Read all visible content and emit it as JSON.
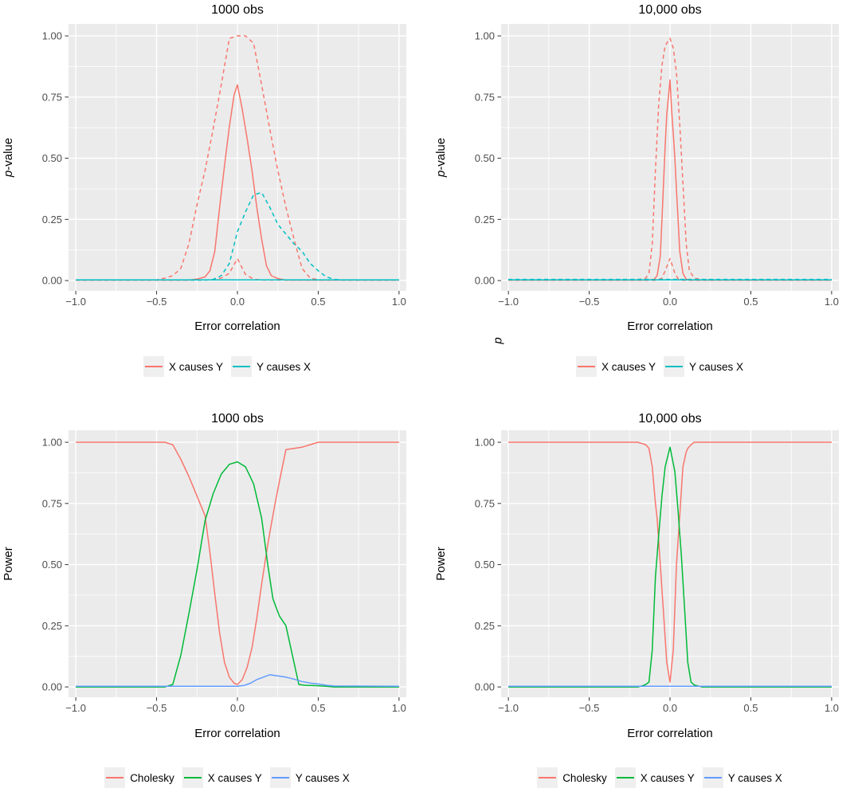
{
  "theme": {
    "panel_bg": "#EBEBEB",
    "grid_color": "#FFFFFF",
    "tick_color": "#333333",
    "tick_label_color": "#4D4D4D",
    "text_color": "#000000",
    "legend_key_bg": "#EFEFEF",
    "palette": {
      "red": "#F8766D",
      "teal": "#00BFC4",
      "green": "#00BA38",
      "blue": "#619CFF"
    }
  },
  "chart_data": [
    {
      "type": "line",
      "title": "1000 obs",
      "xlabel": "Error correlation",
      "ylabel_italic": "p",
      "ylabel_rest": "-value",
      "xlim": [
        -1.045,
        1.045
      ],
      "ylim": [
        -0.042,
        1.049
      ],
      "x_ticks": [
        -1.0,
        -0.5,
        0.0,
        0.5,
        1.0
      ],
      "x_tick_labels": [
        "−1.0",
        "−0.5",
        "0.0",
        "0.5",
        "1.0"
      ],
      "x_minor": [
        -0.75,
        -0.25,
        0.25,
        0.75
      ],
      "y_ticks": [
        0,
        0.25,
        0.5,
        0.75,
        1
      ],
      "y_tick_labels": [
        "0.00",
        "0.25",
        "0.50",
        "0.75",
        "1.00"
      ],
      "y_minor": [
        0.125,
        0.375,
        0.625,
        0.875
      ],
      "legend": [
        {
          "label": "X causes Y",
          "color": "#F8766D"
        },
        {
          "label": "Y causes X",
          "color": "#00BFC4"
        }
      ],
      "series": [
        {
          "name": "x-causes-y-upper-band",
          "color": "#F8766D",
          "dash": true,
          "x": [
            -1,
            -0.5,
            -0.45,
            -0.4,
            -0.35,
            -0.3,
            -0.25,
            -0.2,
            -0.15,
            -0.1,
            -0.05,
            0,
            0.05,
            0.1,
            0.15,
            0.2,
            0.25,
            0.3,
            0.35,
            0.4,
            0.45,
            0.5,
            1
          ],
          "y": [
            0.003,
            0.003,
            0.01,
            0.02,
            0.05,
            0.15,
            0.31,
            0.45,
            0.62,
            0.8,
            0.99,
            1,
            1,
            0.97,
            0.8,
            0.62,
            0.45,
            0.3,
            0.17,
            0.05,
            0.01,
            0.003,
            0.003
          ]
        },
        {
          "name": "x-causes-y-lower-band",
          "color": "#F8766D",
          "dash": true,
          "x": [
            -1,
            -0.2,
            -0.15,
            -0.1,
            -0.05,
            0,
            0.05,
            0.1,
            0.15,
            1
          ],
          "y": [
            0.002,
            0.002,
            0.004,
            0.01,
            0.03,
            0.09,
            0.025,
            0.006,
            0.002,
            0.002
          ]
        },
        {
          "name": "y-causes-x-upper-band",
          "color": "#00BFC4",
          "dash": true,
          "x": [
            -1,
            -0.2,
            -0.15,
            -0.1,
            -0.05,
            0,
            0.05,
            0.1,
            0.15,
            0.2,
            0.25,
            0.3,
            0.35,
            0.4,
            0.45,
            0.5,
            0.55,
            0.6,
            0.65,
            1
          ],
          "y": [
            0.002,
            0.002,
            0.005,
            0.02,
            0.07,
            0.2,
            0.28,
            0.35,
            0.36,
            0.3,
            0.23,
            0.19,
            0.15,
            0.12,
            0.07,
            0.04,
            0.015,
            0.005,
            0.002,
            0.002
          ]
        },
        {
          "name": "x-causes-y-mean",
          "color": "#F8766D",
          "dash": false,
          "x": [
            -1,
            -0.3,
            -0.25,
            -0.2,
            -0.17,
            -0.14,
            -0.11,
            -0.08,
            -0.05,
            -0.02,
            0,
            0.03,
            0.06,
            0.09,
            0.12,
            0.15,
            0.18,
            0.21,
            0.25,
            0.3,
            1
          ],
          "y": [
            0.002,
            0.002,
            0.006,
            0.015,
            0.04,
            0.12,
            0.3,
            0.47,
            0.63,
            0.76,
            0.8,
            0.7,
            0.58,
            0.45,
            0.3,
            0.17,
            0.06,
            0.02,
            0.008,
            0.002,
            0.002
          ]
        },
        {
          "name": "y-causes-x-mean",
          "color": "#00BFC4",
          "dash": false,
          "x": [
            -1,
            1
          ],
          "y": [
            0.003,
            0.003
          ]
        }
      ]
    },
    {
      "type": "line",
      "title": "10,000 obs",
      "xlabel": "Error correlation",
      "ylabel_italic": "p",
      "ylabel_rest": "-value",
      "stray_label": "p",
      "xlim": [
        -1.045,
        1.045
      ],
      "ylim": [
        -0.042,
        1.049
      ],
      "x_ticks": [
        -1.0,
        -0.5,
        0.0,
        0.5,
        1.0
      ],
      "x_tick_labels": [
        "−1.0",
        "−0.5",
        "0.0",
        "0.5",
        "1.0"
      ],
      "x_minor": [
        -0.75,
        -0.25,
        0.25,
        0.75
      ],
      "y_ticks": [
        0,
        0.25,
        0.5,
        0.75,
        1
      ],
      "y_tick_labels": [
        "0.00",
        "0.25",
        "0.50",
        "0.75",
        "1.00"
      ],
      "y_minor": [
        0.125,
        0.375,
        0.625,
        0.875
      ],
      "legend": [
        {
          "label": "X causes Y",
          "color": "#F8766D"
        },
        {
          "label": "Y causes X",
          "color": "#00BFC4"
        }
      ],
      "series": [
        {
          "name": "x-causes-y-upper-band",
          "color": "#F8766D",
          "dash": true,
          "x": [
            -1,
            -0.25,
            -0.2,
            -0.15,
            -0.13,
            -0.11,
            -0.09,
            -0.07,
            -0.05,
            -0.03,
            0,
            0.02,
            0.04,
            0.06,
            0.08,
            0.1,
            0.12,
            0.15,
            0.2,
            0.25,
            1
          ],
          "y": [
            0.002,
            0.002,
            0.004,
            0.01,
            0.03,
            0.15,
            0.45,
            0.72,
            0.88,
            0.96,
            0.99,
            0.95,
            0.85,
            0.64,
            0.4,
            0.15,
            0.04,
            0.01,
            0.003,
            0.002,
            0.002
          ]
        },
        {
          "name": "x-causes-y-lower-band",
          "color": "#F8766D",
          "dash": true,
          "x": [
            -1,
            -0.08,
            -0.05,
            -0.03,
            0,
            0.03,
            0.05,
            0.08,
            1
          ],
          "y": [
            0.001,
            0.001,
            0.01,
            0.04,
            0.09,
            0.03,
            0.008,
            0.001,
            0.001
          ]
        },
        {
          "name": "y-causes-x-upper-band",
          "color": "#00BFC4",
          "dash": true,
          "x": [
            -1,
            1
          ],
          "y": [
            0.005,
            0.005
          ]
        },
        {
          "name": "x-causes-y-mean",
          "color": "#F8766D",
          "dash": false,
          "x": [
            -1,
            -0.15,
            -0.1,
            -0.08,
            -0.06,
            -0.05,
            -0.04,
            -0.03,
            -0.02,
            -0.01,
            0,
            0.01,
            0.02,
            0.03,
            0.04,
            0.05,
            0.06,
            0.08,
            0.1,
            0.15,
            1
          ],
          "y": [
            0.002,
            0.002,
            0.004,
            0.02,
            0.1,
            0.25,
            0.4,
            0.55,
            0.68,
            0.75,
            0.82,
            0.7,
            0.6,
            0.5,
            0.37,
            0.25,
            0.12,
            0.03,
            0.005,
            0.002,
            0.002
          ]
        },
        {
          "name": "y-causes-x-mean",
          "color": "#00BFC4",
          "dash": false,
          "x": [
            -1,
            1
          ],
          "y": [
            0.003,
            0.003
          ]
        }
      ]
    },
    {
      "type": "line",
      "title": "1000 obs",
      "xlabel": "Error correlation",
      "ylabel_italic": "",
      "ylabel_rest": "Power",
      "xlim": [
        -1.045,
        1.045
      ],
      "ylim": [
        -0.042,
        1.049
      ],
      "x_ticks": [
        -1.0,
        -0.5,
        0.0,
        0.5,
        1.0
      ],
      "x_tick_labels": [
        "−1.0",
        "−0.5",
        "0.0",
        "0.5",
        "1.0"
      ],
      "x_minor": [
        -0.75,
        -0.25,
        0.25,
        0.75
      ],
      "y_ticks": [
        0,
        0.25,
        0.5,
        0.75,
        1
      ],
      "y_tick_labels": [
        "0.00",
        "0.25",
        "0.50",
        "0.75",
        "1.00"
      ],
      "y_minor": [
        0.125,
        0.375,
        0.625,
        0.875
      ],
      "legend": [
        {
          "label": "Cholesky",
          "color": "#F8766D"
        },
        {
          "label": "X causes Y",
          "color": "#00BA38"
        },
        {
          "label": "Y causes X",
          "color": "#619CFF"
        }
      ],
      "series": [
        {
          "name": "cholesky-power",
          "color": "#F8766D",
          "dash": false,
          "x": [
            -1,
            -0.5,
            -0.45,
            -0.4,
            -0.35,
            -0.3,
            -0.25,
            -0.2,
            -0.17,
            -0.14,
            -0.11,
            -0.08,
            -0.05,
            -0.02,
            0,
            0.03,
            0.06,
            0.09,
            0.12,
            0.15,
            0.18,
            0.2,
            0.23,
            0.26,
            0.3,
            0.35,
            0.4,
            0.45,
            0.5,
            0.6,
            1
          ],
          "y": [
            1,
            1,
            1,
            0.99,
            0.93,
            0.86,
            0.78,
            0.7,
            0.55,
            0.38,
            0.22,
            0.1,
            0.04,
            0.015,
            0.01,
            0.03,
            0.08,
            0.16,
            0.28,
            0.42,
            0.55,
            0.63,
            0.74,
            0.84,
            0.97,
            0.975,
            0.98,
            0.99,
            1,
            1,
            1
          ]
        },
        {
          "name": "x-causes-y-power",
          "color": "#00BA38",
          "dash": false,
          "x": [
            -1,
            -0.45,
            -0.4,
            -0.35,
            -0.3,
            -0.25,
            -0.2,
            -0.15,
            -0.1,
            -0.05,
            0,
            0.05,
            0.1,
            0.15,
            0.19,
            0.22,
            0.26,
            0.3,
            0.35,
            0.38,
            0.42,
            0.5,
            0.55,
            0.6,
            1
          ],
          "y": [
            0,
            0,
            0.01,
            0.13,
            0.3,
            0.48,
            0.68,
            0.79,
            0.87,
            0.91,
            0.92,
            0.9,
            0.83,
            0.69,
            0.49,
            0.36,
            0.29,
            0.25,
            0.1,
            0.01,
            0.007,
            0.005,
            0.003,
            0,
            0
          ]
        },
        {
          "name": "y-causes-x-power",
          "color": "#619CFF",
          "dash": false,
          "x": [
            -1,
            0,
            0.04,
            0.08,
            0.12,
            0.16,
            0.2,
            0.25,
            0.3,
            0.35,
            0.4,
            0.45,
            0.5,
            0.55,
            0.6,
            1
          ],
          "y": [
            0.003,
            0.003,
            0.006,
            0.015,
            0.03,
            0.04,
            0.05,
            0.045,
            0.04,
            0.032,
            0.022,
            0.016,
            0.012,
            0.007,
            0.004,
            0.003
          ]
        }
      ]
    },
    {
      "type": "line",
      "title": "10,000 obs",
      "xlabel": "Error correlation",
      "ylabel_italic": "",
      "ylabel_rest": "Power",
      "xlim": [
        -1.045,
        1.045
      ],
      "ylim": [
        -0.042,
        1.049
      ],
      "x_ticks": [
        -1.0,
        -0.5,
        0.0,
        0.5,
        1.0
      ],
      "x_tick_labels": [
        "−1.0",
        "−0.5",
        "0.0",
        "0.5",
        "1.0"
      ],
      "x_minor": [
        -0.75,
        -0.25,
        0.25,
        0.75
      ],
      "y_ticks": [
        0,
        0.25,
        0.5,
        0.75,
        1
      ],
      "y_tick_labels": [
        "0.00",
        "0.25",
        "0.50",
        "0.75",
        "1.00"
      ],
      "y_minor": [
        0.125,
        0.375,
        0.625,
        0.875
      ],
      "legend": [
        {
          "label": "Cholesky",
          "color": "#F8766D"
        },
        {
          "label": "X causes Y",
          "color": "#00BA38"
        },
        {
          "label": "Y causes X",
          "color": "#619CFF"
        }
      ],
      "series": [
        {
          "name": "cholesky-power",
          "color": "#F8766D",
          "dash": false,
          "x": [
            -1,
            -0.2,
            -0.15,
            -0.13,
            -0.11,
            -0.09,
            -0.08,
            -0.06,
            -0.04,
            -0.02,
            0,
            0.02,
            0.04,
            0.06,
            0.08,
            0.1,
            0.11,
            0.13,
            0.15,
            0.2,
            1
          ],
          "y": [
            1,
            1,
            0.99,
            0.975,
            0.9,
            0.75,
            0.69,
            0.5,
            0.3,
            0.1,
            0.02,
            0.15,
            0.5,
            0.7,
            0.9,
            0.96,
            0.975,
            0.99,
            1,
            1,
            1
          ]
        },
        {
          "name": "x-causes-y-power",
          "color": "#00BA38",
          "dash": false,
          "x": [
            -1,
            -0.2,
            -0.17,
            -0.15,
            -0.13,
            -0.11,
            -0.09,
            -0.07,
            -0.05,
            -0.03,
            0,
            0.03,
            0.05,
            0.07,
            0.09,
            0.11,
            0.13,
            0.15,
            0.18,
            0.2,
            1
          ],
          "y": [
            0,
            0,
            0.005,
            0.01,
            0.02,
            0.15,
            0.45,
            0.62,
            0.78,
            0.9,
            0.98,
            0.88,
            0.72,
            0.54,
            0.32,
            0.1,
            0.02,
            0.008,
            0.003,
            0,
            0
          ]
        },
        {
          "name": "y-causes-x-power",
          "color": "#619CFF",
          "dash": false,
          "x": [
            -1,
            1
          ],
          "y": [
            0.003,
            0.003
          ]
        }
      ]
    }
  ]
}
